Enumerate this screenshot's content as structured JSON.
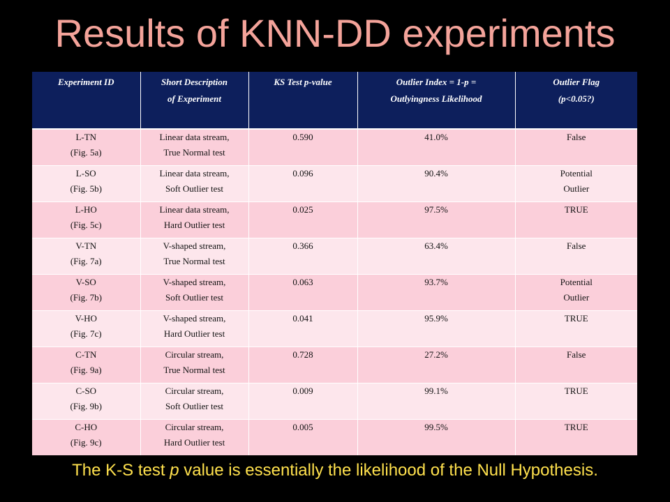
{
  "title": "Results of KNN-DD experiments",
  "table": {
    "headers": [
      {
        "line1": "Experiment ID",
        "line2": ""
      },
      {
        "line1": "Short Description",
        "line2": "of Experiment"
      },
      {
        "line1": "KS Test p-value",
        "line2": ""
      },
      {
        "line1": "Outlier Index = 1-p =",
        "line2": "Outlyingness Likelihood"
      },
      {
        "line1": "Outlier Flag",
        "line2": "(p<0.05?)"
      }
    ],
    "rows": [
      {
        "id": "L-TN",
        "fig": "(Fig. 5a)",
        "desc1": "Linear data stream,",
        "desc2": "True Normal test",
        "pvalue": "0.590",
        "index": "41.0%",
        "flag1": "False",
        "flag2": ""
      },
      {
        "id": "L-SO",
        "fig": "(Fig. 5b)",
        "desc1": "Linear data stream,",
        "desc2": "Soft Outlier test",
        "pvalue": "0.096",
        "index": "90.4%",
        "flag1": "Potential",
        "flag2": "Outlier"
      },
      {
        "id": "L-HO",
        "fig": "(Fig. 5c)",
        "desc1": "Linear data stream,",
        "desc2": "Hard Outlier test",
        "pvalue": "0.025",
        "index": "97.5%",
        "flag1": "TRUE",
        "flag2": ""
      },
      {
        "id": "V-TN",
        "fig": "(Fig. 7a)",
        "desc1": "V-shaped stream,",
        "desc2": "True Normal test",
        "pvalue": "0.366",
        "index": "63.4%",
        "flag1": "False",
        "flag2": ""
      },
      {
        "id": "V-SO",
        "fig": "(Fig. 7b)",
        "desc1": "V-shaped stream,",
        "desc2": "Soft Outlier test",
        "pvalue": "0.063",
        "index": "93.7%",
        "flag1": "Potential",
        "flag2": "Outlier"
      },
      {
        "id": "V-HO",
        "fig": "(Fig. 7c)",
        "desc1": "V-shaped stream,",
        "desc2": "Hard Outlier test",
        "pvalue": "0.041",
        "index": "95.9%",
        "flag1": "TRUE",
        "flag2": ""
      },
      {
        "id": "C-TN",
        "fig": "(Fig. 9a)",
        "desc1": "Circular stream,",
        "desc2": "True Normal test",
        "pvalue": "0.728",
        "index": "27.2%",
        "flag1": "False",
        "flag2": ""
      },
      {
        "id": "C-SO",
        "fig": "(Fig. 9b)",
        "desc1": "Circular stream,",
        "desc2": "Soft Outlier test",
        "pvalue": "0.009",
        "index": "99.1%",
        "flag1": "TRUE",
        "flag2": ""
      },
      {
        "id": "C-HO",
        "fig": "(Fig. 9c)",
        "desc1": "Circular stream,",
        "desc2": "Hard Outlier test",
        "pvalue": "0.005",
        "index": "99.5%",
        "flag1": "TRUE",
        "flag2": ""
      }
    ]
  },
  "footer": {
    "before": "The K-S test ",
    "p": "p",
    "after": " value is essentially the likelihood of the Null Hypothesis."
  },
  "colors": {
    "background": "#000000",
    "title": "#f4a39a",
    "header_bg": "#0d1f5c",
    "row_odd": "#fbcfda",
    "row_even": "#fde6ec",
    "footer_text": "#ffe14d"
  }
}
